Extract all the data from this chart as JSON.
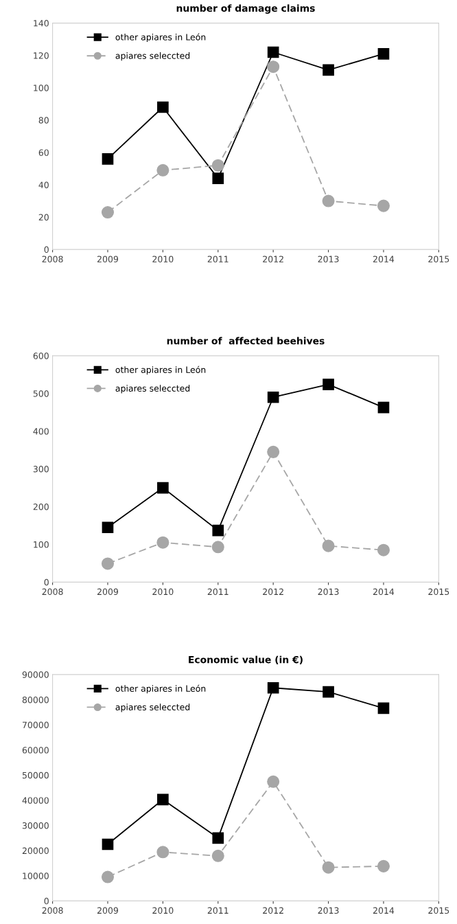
{
  "chart_data": [
    {
      "type": "line",
      "title": "number of damage claims",
      "x": [
        2009,
        2010,
        2011,
        2012,
        2013,
        2014
      ],
      "xlim": [
        2008,
        2015
      ],
      "xticks": [
        2008,
        2009,
        2010,
        2011,
        2012,
        2013,
        2014,
        2015
      ],
      "ylim": [
        0,
        140
      ],
      "yticks": [
        0,
        20,
        40,
        60,
        80,
        100,
        120,
        140
      ],
      "grid": false,
      "legend": "top left",
      "series": [
        {
          "name": "other apiares in León",
          "color": "#000000",
          "marker": "square",
          "line_style": "solid",
          "values": [
            56,
            88,
            44,
            122,
            111,
            121
          ]
        },
        {
          "name": "apiares seleccted",
          "color": "#a6a6a6",
          "marker": "circle",
          "line_style": "dashed",
          "values": [
            23,
            49,
            52,
            113,
            30,
            27
          ]
        }
      ]
    },
    {
      "type": "line",
      "title": "number of  affected beehives",
      "x": [
        2009,
        2010,
        2011,
        2012,
        2013,
        2014
      ],
      "xlim": [
        2008,
        2015
      ],
      "xticks": [
        2008,
        2009,
        2010,
        2011,
        2012,
        2013,
        2014,
        2015
      ],
      "ylim": [
        0,
        600
      ],
      "yticks": [
        0,
        100,
        200,
        300,
        400,
        500,
        600
      ],
      "grid": false,
      "legend": "top left",
      "series": [
        {
          "name": "other apiares in León",
          "color": "#000000",
          "marker": "square",
          "line_style": "solid",
          "values": [
            145,
            250,
            137,
            490,
            524,
            463
          ]
        },
        {
          "name": "apiares seleccted",
          "color": "#a6a6a6",
          "marker": "circle",
          "line_style": "dashed",
          "values": [
            49,
            105,
            93,
            345,
            96,
            85
          ]
        }
      ]
    },
    {
      "type": "line",
      "title": "Economic value (in €)",
      "x": [
        2009,
        2010,
        2011,
        2012,
        2013,
        2014
      ],
      "xlim": [
        2008,
        2015
      ],
      "xticks": [
        2008,
        2009,
        2010,
        2011,
        2012,
        2013,
        2014,
        2015
      ],
      "ylim": [
        0,
        90000
      ],
      "yticks": [
        0,
        10000,
        20000,
        30000,
        40000,
        50000,
        60000,
        70000,
        80000,
        90000
      ],
      "grid": false,
      "legend": "top left",
      "series": [
        {
          "name": "other apiares in León",
          "color": "#000000",
          "marker": "square",
          "line_style": "solid",
          "values": [
            22500,
            40300,
            25000,
            84700,
            83100,
            76600
          ]
        },
        {
          "name": "apiares seleccted",
          "color": "#a6a6a6",
          "marker": "circle",
          "line_style": "dashed",
          "values": [
            9500,
            19400,
            17900,
            47400,
            13300,
            13800
          ]
        }
      ]
    }
  ]
}
